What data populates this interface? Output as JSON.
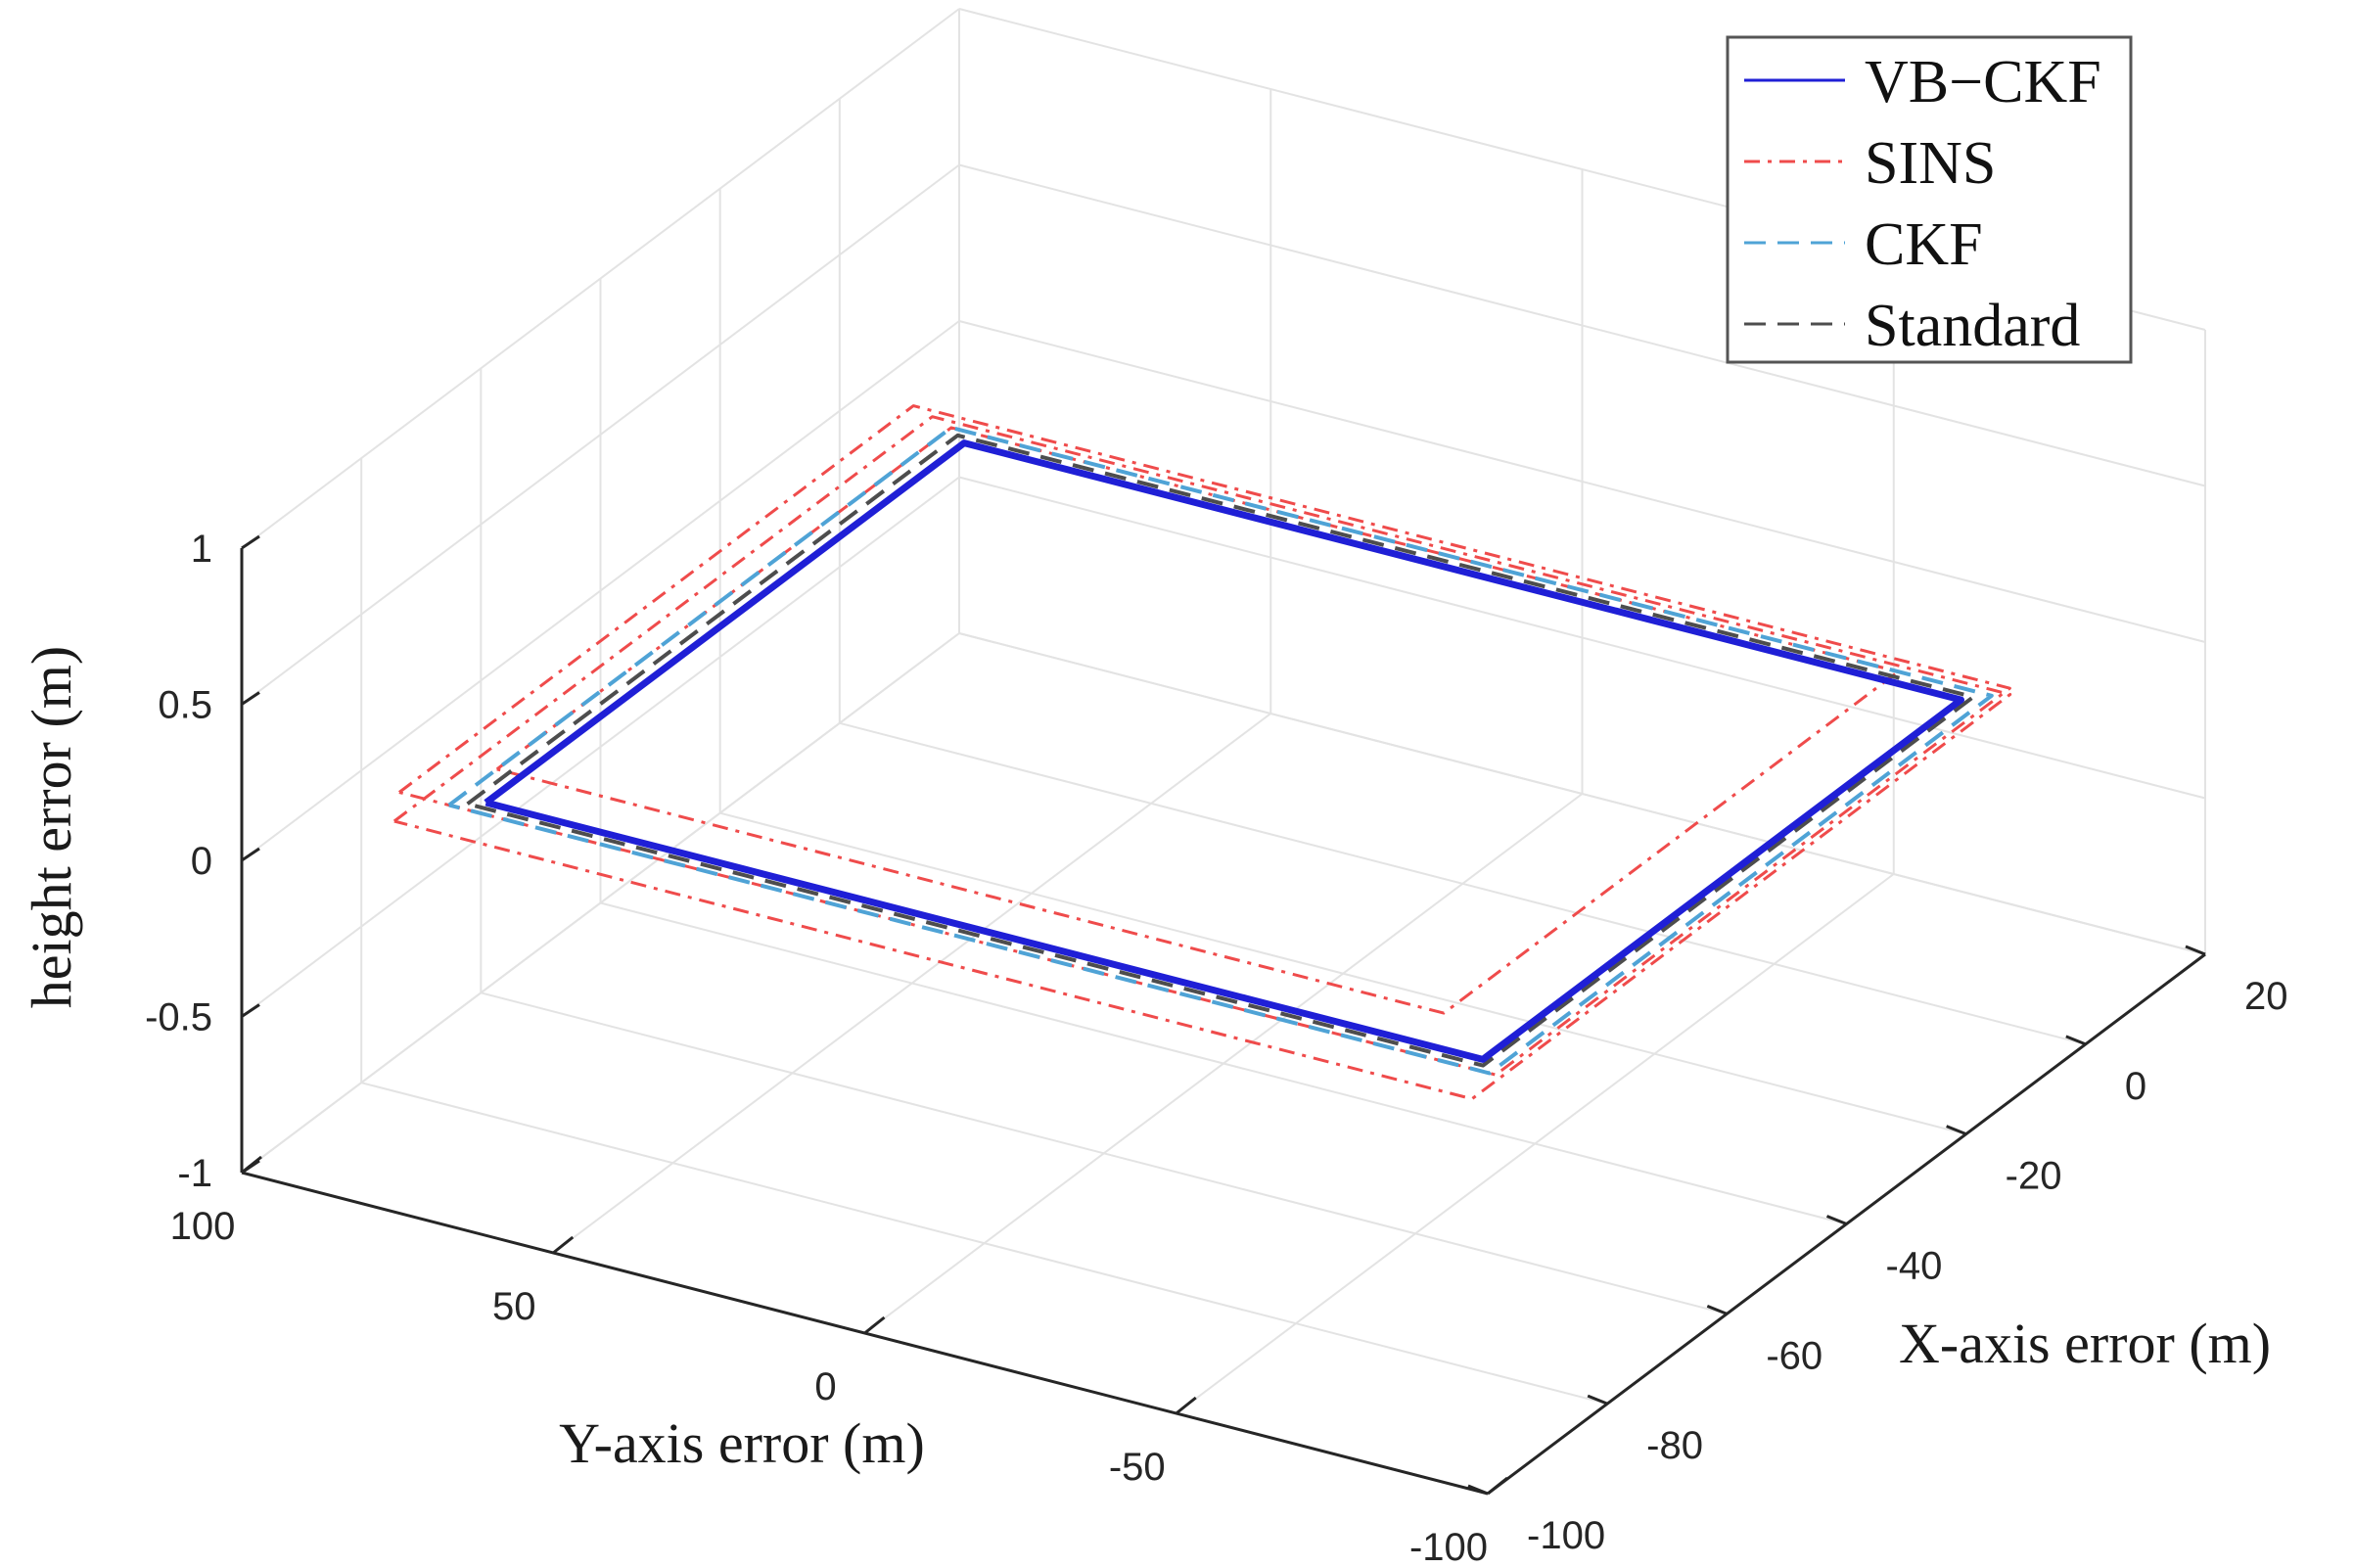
{
  "chart_data": {
    "type": "line3d",
    "title": "",
    "xlabel": "X-axis error (m)",
    "ylabel": "Y-axis error (m)",
    "zlabel": "height error (m)",
    "xlim": [
      -100,
      20
    ],
    "ylim": [
      -100,
      100
    ],
    "zlim": [
      -1,
      1
    ],
    "xticks": [
      -100,
      -80,
      -60,
      -40,
      -20,
      0,
      20
    ],
    "yticks": [
      100,
      50,
      0,
      -50,
      -100
    ],
    "zticks": [
      1,
      0.5,
      0,
      -0.5,
      -1
    ],
    "xtick_labels": [
      "-100",
      "-80",
      "-60",
      "-40",
      "-20",
      "0",
      "20"
    ],
    "ytick_labels": [
      "100",
      "50",
      "0",
      "-50",
      "-100"
    ],
    "ztick_labels": [
      "1",
      "0.5",
      "0",
      "-0.5",
      "-1"
    ],
    "grid": true,
    "legend_position": "top-right",
    "series": [
      {
        "name": "VB−CKF",
        "color": "#1f1fd6",
        "style": "solid",
        "x": [
          -80,
          0,
          0,
          -80,
          -80
        ],
        "y": [
          80,
          80,
          -80,
          -80,
          80
        ],
        "z": [
          0,
          0,
          0,
          0,
          0
        ]
      },
      {
        "name": "SINS",
        "color": "#ef4b4b",
        "style": "dashdot",
        "paths": [
          {
            "x": [
              -82,
              4,
              4,
              -82,
              -82
            ],
            "y": [
              92,
              92,
              -84,
              -84,
              92
            ],
            "z": [
              0,
              0,
              0,
              0,
              0
            ]
          },
          {
            "x": [
              -74,
              2,
              2,
              -74,
              -74
            ],
            "y": [
              84,
              84,
              -68,
              -68,
              84
            ],
            "z": [
              0,
              0,
              0,
              0,
              0
            ]
          },
          {
            "x": [
              -87,
              3,
              3,
              -87,
              -87
            ],
            "y": [
              88,
              88,
              -85,
              -85,
              88
            ],
            "z": [
              0,
              0,
              0,
              0,
              0
            ]
          }
        ]
      },
      {
        "name": "CKF",
        "color": "#4fa3d6",
        "style": "dashed",
        "x": [
          -82,
          2,
          2,
          -82,
          -82
        ],
        "y": [
          84,
          84,
          -83,
          -83,
          84
        ],
        "z": [
          0,
          0,
          0,
          0,
          0
        ]
      },
      {
        "name": "Standard",
        "color": "#4d4d4d",
        "style": "dashed",
        "x": [
          -81,
          1,
          1,
          -81,
          -81
        ],
        "y": [
          82,
          82,
          -81,
          -81,
          82
        ],
        "z": [
          0,
          0,
          0,
          0,
          0
        ]
      }
    ]
  }
}
